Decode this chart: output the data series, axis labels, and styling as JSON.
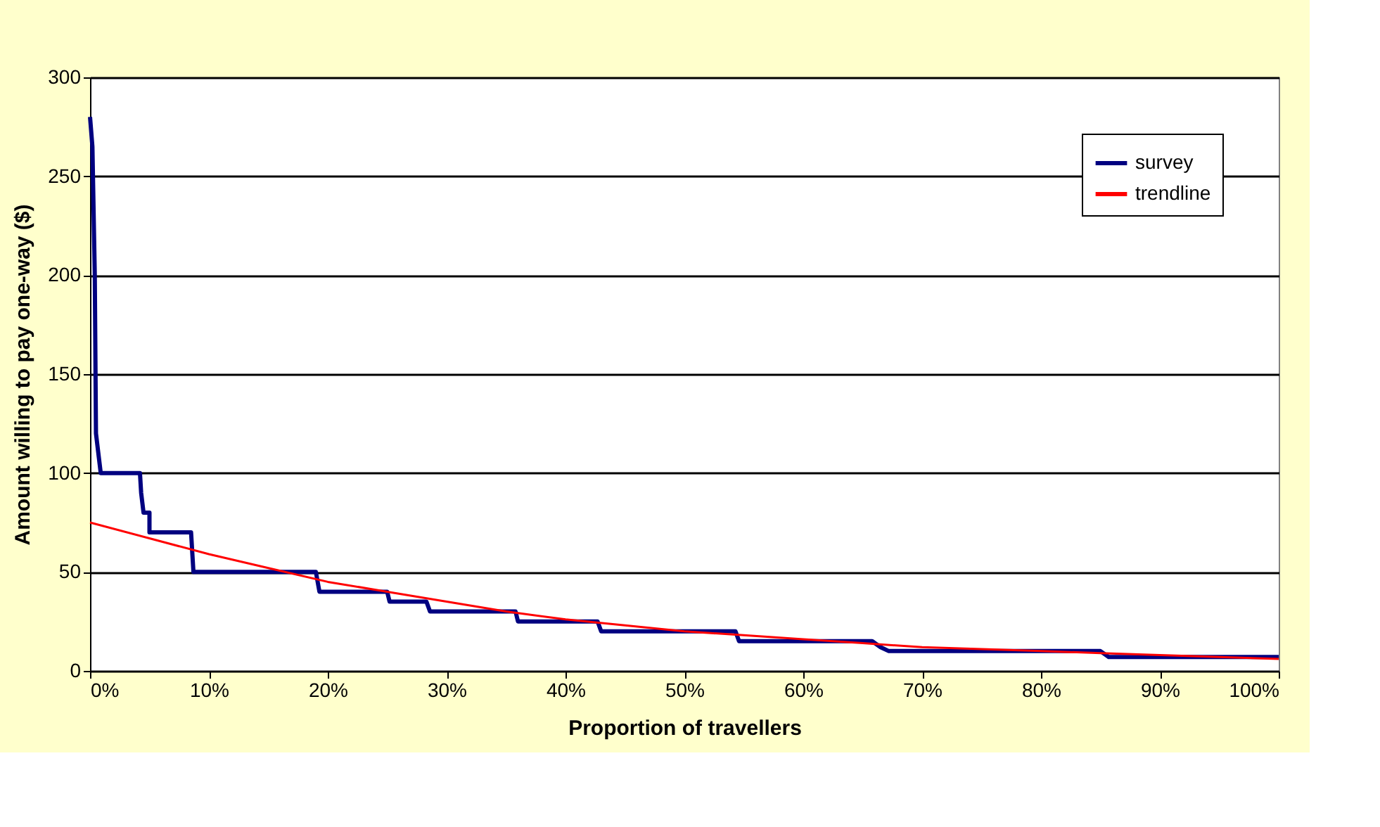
{
  "chart_data": {
    "type": "line",
    "xlabel": "Proportion of travellers",
    "ylabel": "Amount willing to pay one-way ($)",
    "xlim": [
      0,
      100
    ],
    "ylim": [
      0,
      300
    ],
    "xticks": [
      {
        "value": 0,
        "label": "0%"
      },
      {
        "value": 10,
        "label": "10%"
      },
      {
        "value": 20,
        "label": "20%"
      },
      {
        "value": 30,
        "label": "30%"
      },
      {
        "value": 40,
        "label": "40%"
      },
      {
        "value": 50,
        "label": "50%"
      },
      {
        "value": 60,
        "label": "60%"
      },
      {
        "value": 70,
        "label": "70%"
      },
      {
        "value": 80,
        "label": "80%"
      },
      {
        "value": 90,
        "label": "90%"
      },
      {
        "value": 100,
        "label": "100%"
      }
    ],
    "yticks": [
      0,
      50,
      100,
      150,
      200,
      250,
      300
    ],
    "grid": "y",
    "legend": "top right",
    "line_style": "solid",
    "marker": "none",
    "series": [
      {
        "name": "survey",
        "color": "#000080",
        "x": [
          0,
          0.2,
          0.4,
          0.5,
          0.7,
          0.9,
          4.2,
          4.3,
          4.5,
          5,
          5,
          8.5,
          8.7,
          19,
          19.3,
          25,
          25.2,
          28.3,
          28.6,
          35.8,
          36,
          42.7,
          43,
          54.3,
          54.6,
          65.8,
          66.5,
          67.2,
          85,
          85.7,
          100
        ],
        "values": [
          280,
          265,
          200,
          120,
          110,
          100,
          100,
          90,
          80,
          80,
          70,
          70,
          50,
          50,
          40,
          40,
          35,
          35,
          30,
          30,
          25,
          25,
          20,
          20,
          15,
          15,
          12,
          10,
          10,
          7,
          7
        ]
      },
      {
        "name": "trendline",
        "color": "#ff0000",
        "x": [
          0,
          5,
          10,
          15,
          20,
          25,
          30,
          35,
          40,
          45,
          50,
          55,
          60,
          65,
          70,
          75,
          80,
          85,
          90,
          95,
          100
        ],
        "values": [
          75,
          67,
          59,
          52,
          45,
          40,
          35,
          30,
          26,
          23,
          20,
          18,
          16,
          14,
          12,
          11,
          10,
          9,
          8,
          7,
          6
        ]
      }
    ]
  }
}
